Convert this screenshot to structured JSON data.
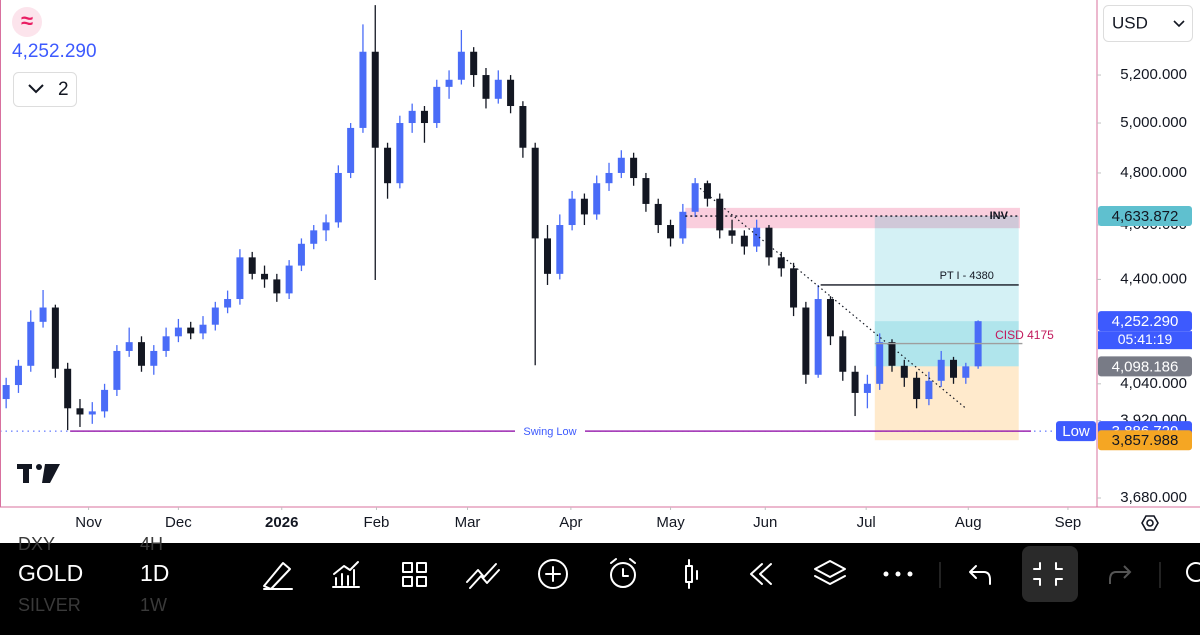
{
  "header": {
    "symbol_icon": "≈",
    "price": "4,252.290",
    "pane_count": "2",
    "currency": "USD"
  },
  "chart_data": {
    "type": "candlestick",
    "log_scale": true,
    "up_color": "#4a6cf7",
    "down_color": "#131722",
    "ylim": [
      3653,
      5529
    ],
    "yticks": [
      {
        "value": 5200,
        "label": "5,200.000"
      },
      {
        "value": 5000,
        "label": "5,000.000"
      },
      {
        "value": 4800,
        "label": "4,800.000"
      },
      {
        "value": 4600,
        "label": "4,600.000"
      },
      {
        "value": 4400,
        "label": "4,400.000"
      },
      {
        "value": 4040,
        "label": "4,040.000"
      },
      {
        "value": 3920,
        "label": "3,920.000"
      },
      {
        "value": 3680,
        "label": "3,680.000"
      }
    ],
    "xlim": [
      -0.5,
      88.5
    ],
    "xticks": [
      {
        "value": 6.7,
        "label": "Nov"
      },
      {
        "value": 14.0,
        "label": "Dec"
      },
      {
        "value": 22.4,
        "label": "2026"
      },
      {
        "value": 30.1,
        "label": "Feb"
      },
      {
        "value": 37.5,
        "label": "Mar"
      },
      {
        "value": 45.9,
        "label": "Apr"
      },
      {
        "value": 54.0,
        "label": "May"
      },
      {
        "value": 61.7,
        "label": "Jun"
      },
      {
        "value": 69.9,
        "label": "Jul"
      },
      {
        "value": 78.2,
        "label": "Aug"
      },
      {
        "value": 86.3,
        "label": "Sep"
      }
    ],
    "ohlc": [
      [
        3990,
        4060,
        3960,
        4036
      ],
      [
        4036,
        4120,
        4010,
        4100
      ],
      [
        4100,
        4290,
        4080,
        4250
      ],
      [
        4250,
        4362,
        4230,
        4300
      ],
      [
        4300,
        4310,
        4060,
        4090
      ],
      [
        4090,
        4110,
        3890,
        3960
      ],
      [
        3960,
        3990,
        3900,
        3940
      ],
      [
        3940,
        3980,
        3910,
        3950
      ],
      [
        3950,
        4040,
        3930,
        4020
      ],
      [
        4020,
        4170,
        4000,
        4150
      ],
      [
        4150,
        4230,
        4130,
        4180
      ],
      [
        4180,
        4200,
        4080,
        4100
      ],
      [
        4100,
        4170,
        4070,
        4150
      ],
      [
        4150,
        4230,
        4130,
        4200
      ],
      [
        4200,
        4260,
        4180,
        4230
      ],
      [
        4230,
        4250,
        4190,
        4210
      ],
      [
        4210,
        4270,
        4190,
        4240
      ],
      [
        4240,
        4320,
        4220,
        4300
      ],
      [
        4300,
        4360,
        4280,
        4330
      ],
      [
        4330,
        4510,
        4310,
        4480
      ],
      [
        4480,
        4500,
        4400,
        4420
      ],
      [
        4420,
        4450,
        4370,
        4400
      ],
      [
        4400,
        4420,
        4320,
        4350
      ],
      [
        4350,
        4470,
        4330,
        4450
      ],
      [
        4450,
        4550,
        4430,
        4530
      ],
      [
        4530,
        4600,
        4510,
        4580
      ],
      [
        4580,
        4640,
        4540,
        4610
      ],
      [
        4610,
        4830,
        4590,
        4800
      ],
      [
        4800,
        5000,
        4780,
        4980
      ],
      [
        4980,
        5420,
        4960,
        5300
      ],
      [
        5300,
        5506,
        4398,
        4900
      ],
      [
        4900,
        4920,
        4700,
        4760
      ],
      [
        4760,
        5030,
        4740,
        5000
      ],
      [
        5000,
        5080,
        4960,
        5050
      ],
      [
        5050,
        5070,
        4920,
        5000
      ],
      [
        5000,
        5180,
        4980,
        5150
      ],
      [
        5150,
        5220,
        5100,
        5180
      ],
      [
        5180,
        5395,
        5160,
        5300
      ],
      [
        5300,
        5320,
        5150,
        5200
      ],
      [
        5200,
        5230,
        5060,
        5100
      ],
      [
        5100,
        5220,
        5080,
        5180
      ],
      [
        5180,
        5200,
        5040,
        5070
      ],
      [
        5070,
        5090,
        4860,
        4900
      ],
      [
        4900,
        4920,
        4102,
        4550
      ],
      [
        4550,
        4600,
        4380,
        4420
      ],
      [
        4420,
        4640,
        4400,
        4600
      ],
      [
        4600,
        4730,
        4580,
        4700
      ],
      [
        4700,
        4720,
        4600,
        4640
      ],
      [
        4640,
        4790,
        4620,
        4760
      ],
      [
        4760,
        4840,
        4730,
        4800
      ],
      [
        4800,
        4890,
        4780,
        4860
      ],
      [
        4860,
        4880,
        4750,
        4780
      ],
      [
        4780,
        4800,
        4650,
        4680
      ],
      [
        4680,
        4700,
        4570,
        4600
      ],
      [
        4600,
        4620,
        4520,
        4550
      ],
      [
        4550,
        4680,
        4530,
        4650
      ],
      [
        4650,
        4780,
        4630,
        4760
      ],
      [
        4760,
        4770,
        4670,
        4700
      ],
      [
        4700,
        4720,
        4550,
        4580
      ],
      [
        4580,
        4620,
        4530,
        4560
      ],
      [
        4560,
        4580,
        4490,
        4520
      ],
      [
        4520,
        4620,
        4500,
        4590
      ],
      [
        4590,
        4600,
        4450,
        4480
      ],
      [
        4480,
        4500,
        4410,
        4440
      ],
      [
        4440,
        4460,
        4270,
        4300
      ],
      [
        4300,
        4320,
        4040,
        4070
      ],
      [
        4070,
        4380,
        4060,
        4330
      ],
      [
        4330,
        4340,
        4170,
        4200
      ],
      [
        4200,
        4220,
        4050,
        4080
      ],
      [
        4080,
        4100,
        3935,
        4010
      ],
      [
        4010,
        4070,
        3960,
        4040
      ],
      [
        4040,
        4210,
        4020,
        4180
      ],
      [
        4180,
        4190,
        4080,
        4100
      ],
      [
        4100,
        4120,
        4030,
        4060
      ],
      [
        4060,
        4080,
        3960,
        3990
      ],
      [
        3990,
        4080,
        3970,
        4050
      ],
      [
        4050,
        4150,
        4030,
        4120
      ],
      [
        4120,
        4130,
        4040,
        4060
      ],
      [
        4060,
        4110,
        4040,
        4098.186
      ],
      [
        4098.186,
        4255,
        4090,
        4252.29
      ]
    ],
    "zones": [
      {
        "x": [
          55.2,
          82.4
        ],
        "y": [
          4588,
          4665
        ],
        "color": "rgba(233,30,99,0.22)"
      },
      {
        "x": [
          70.6,
          82.3
        ],
        "y": [
          4098.186,
          4633.872
        ],
        "color": "rgba(0,172,193,0.17)"
      },
      {
        "x": [
          70.6,
          82.3
        ],
        "y": [
          4098.186,
          4252.29
        ],
        "color": "rgba(0,172,193,0.17)"
      },
      {
        "x": [
          70.6,
          82.3
        ],
        "y": [
          3857.988,
          4098.186
        ],
        "color": "rgba(255,152,0,0.2)"
      }
    ],
    "lines": [
      {
        "label": "INV",
        "x": [
          55.2,
          82.4
        ],
        "y": 4633.872,
        "color": "#131722",
        "dash": "2 3"
      },
      {
        "label": "PT I - 4380",
        "x": [
          66.2,
          82.3
        ],
        "y": 4380,
        "color": "#131722",
        "dash": ""
      },
      {
        "label": "CISD 4175",
        "x": [
          70.6,
          82.6
        ],
        "y": 4175,
        "color": "#9e9e9e",
        "dash": ""
      },
      {
        "label": "Swing Low",
        "x": [
          5.2,
          83.3
        ],
        "y": 3886.72,
        "color": "#9c27b0",
        "dash": ""
      }
    ],
    "trendline": {
      "x": [
        56.4,
        78.0
      ],
      "y": [
        4740,
        3960
      ]
    },
    "price_labels": [
      {
        "value": 4633.872,
        "label": "4,633.872",
        "color": "#5fc0cf",
        "text_color": "#131722"
      },
      {
        "value": 4252.29,
        "label": "4,252.290",
        "tag": "05:41:19",
        "color": "#3d5afe",
        "text_color": "#ffffff"
      },
      {
        "value": 4098.186,
        "label": "4,098.186",
        "color": "#787b86",
        "text_color": "#ffffff"
      },
      {
        "value": 3886.72,
        "label": "3,886.720",
        "tag": "Low",
        "color": "#3d5afe",
        "text_color": "#ffffff"
      },
      {
        "value": 3857.988,
        "label": "3,857.988",
        "color": "#f5a623",
        "text_color": "#131722"
      }
    ]
  },
  "toolbar": {
    "symbol": "GOLD",
    "interval": "1D",
    "prev_symbol": "DXY",
    "prev_interval": "4H",
    "next_symbol": "SILVER",
    "next_interval": "1W"
  }
}
